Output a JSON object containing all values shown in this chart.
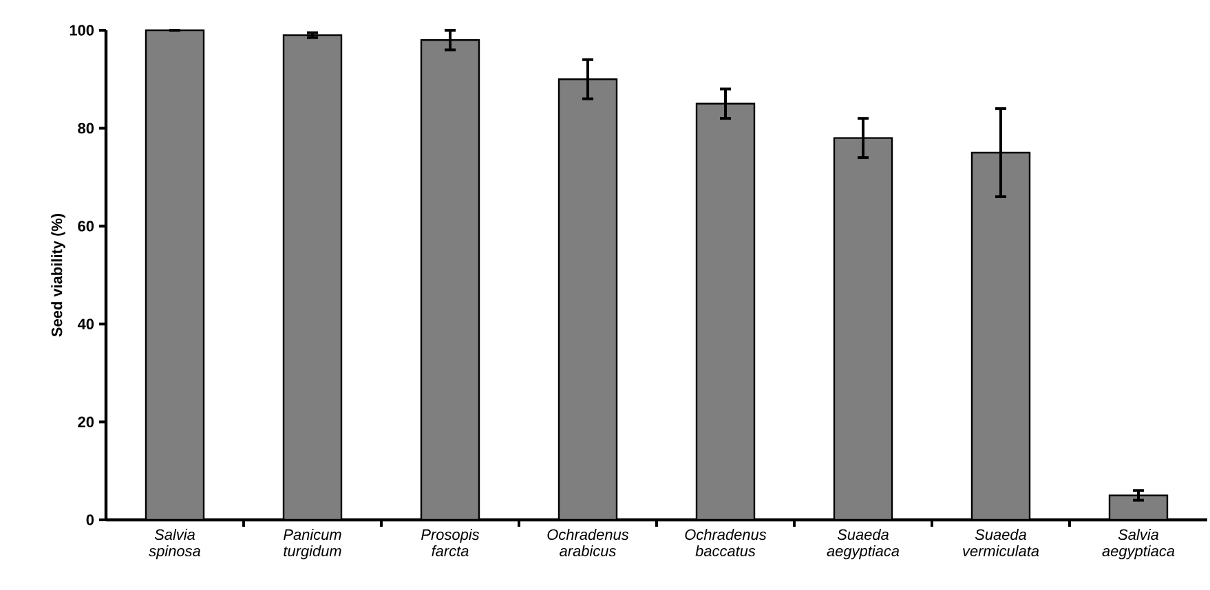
{
  "chart_data": {
    "type": "bar",
    "ylabel": "Seed viability (%)",
    "categories": [
      "Salvia spinosa",
      "Panicum turgidum",
      "Prosopis farcta",
      "Ochradenus arabicus",
      "Ochradenus baccatus",
      "Suaeda aegyptiaca",
      "Suaeda vermiculata",
      "Salvia aegyptiaca"
    ],
    "values": [
      100,
      99,
      98,
      90,
      85,
      78,
      75,
      5
    ],
    "errors": [
      null,
      0.5,
      2,
      4,
      3,
      4,
      9,
      1
    ],
    "color": "#7f7f7f",
    "ylim": [
      0,
      100
    ],
    "yticks": [
      0,
      20,
      40,
      60,
      80,
      100
    ],
    "grid": false
  }
}
